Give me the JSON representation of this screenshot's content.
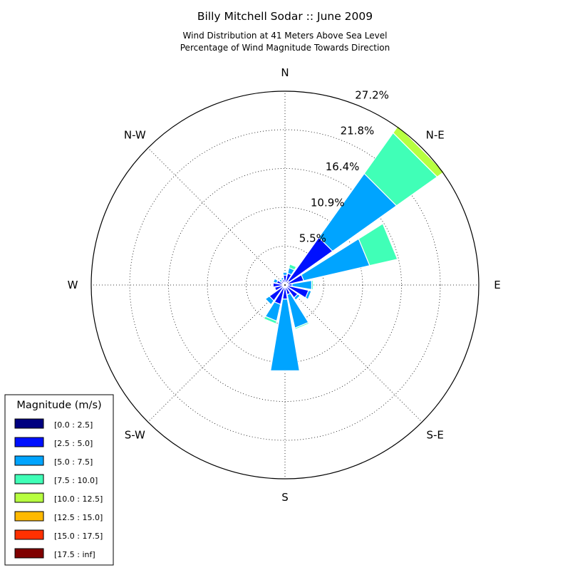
{
  "chart_data": {
    "type": "windrose",
    "title": "Billy Mitchell Sodar :: June 2009",
    "subtitle_lines": [
      "Wind Distribution at 41 Meters Above Sea Level",
      "Percentage of Wind Magnitude Towards Direction"
    ],
    "direction_labels": [
      "E",
      "N-E",
      "N",
      "N-W",
      "W",
      "S-W",
      "S",
      "S-E"
    ],
    "radial_tick_labels": [
      "5.5%",
      "10.9%",
      "16.4%",
      "21.8%",
      "27.2%"
    ],
    "radial_ticks": [
      5.45,
      10.9,
      16.35,
      21.8,
      27.2
    ],
    "rmax": 27.2,
    "grid": true,
    "legend": {
      "title": "Magnitude (m/s)",
      "placement": "bottom-left",
      "entries": [
        "[0.0 : 2.5]",
        "[2.5 : 5.0]",
        "[5.0 : 7.5]",
        "[7.5 : 10.0]",
        "[10.0 : 12.5]",
        "[12.5 : 15.0]",
        "[15.0 : 17.5]",
        "[17.5 : inf]"
      ],
      "colors": [
        "#000080",
        "#0010ff",
        "#00a4ff",
        "#40ffb7",
        "#b7ff40",
        "#ffb900",
        "#ff3000",
        "#800000"
      ]
    },
    "sectors_deg": [
      0,
      22.5,
      45,
      67.5,
      90,
      112.5,
      135,
      157.5,
      180,
      202.5,
      225,
      247.5,
      270,
      292.5,
      315,
      337.5
    ],
    "cumulative_percent": [
      [
        0.1,
        0.8,
        3.6,
        3.8,
        3.8,
        3.8,
        3.8,
        3.8
      ],
      [
        0.2,
        2.5,
        12.0,
        16.0,
        16.0,
        16.0,
        16.0,
        16.0
      ],
      [
        0.5,
        8.0,
        19.0,
        26.0,
        27.2,
        27.2,
        27.2,
        27.2
      ],
      [
        0.1,
        1.5,
        2.3,
        2.8,
        2.8,
        2.8,
        2.8,
        2.8
      ],
      [
        0.1,
        1.2,
        1.6,
        1.6,
        1.6,
        1.6,
        1.6,
        1.6
      ],
      [
        0.1,
        0.6,
        0.9,
        1.0,
        1.0,
        1.0,
        1.0,
        1.0
      ],
      [
        0.1,
        0.5,
        0.8,
        0.8,
        0.8,
        0.8,
        0.8,
        0.8
      ],
      [
        0.1,
        1.0,
        1.5,
        1.5,
        1.5,
        1.5,
        1.5,
        1.5
      ],
      [
        0.1,
        1.5,
        1.6,
        1.6,
        1.6,
        1.6,
        1.6,
        1.6
      ],
      [
        0.1,
        1.3,
        1.4,
        1.4,
        1.4,
        1.4,
        1.4,
        1.4
      ],
      [
        0.1,
        2.5,
        3.2,
        3.3,
        3.3,
        3.3,
        3.3,
        3.3
      ],
      [
        0.1,
        2.6,
        5.0,
        5.4,
        5.4,
        5.4,
        5.4,
        5.4
      ],
      [
        0.2,
        1.8,
        12.0,
        12.0,
        12.0,
        12.0,
        12.0,
        12.0
      ],
      [
        0.1,
        1.2,
        6.0,
        6.2,
        6.2,
        6.2,
        6.2,
        6.2
      ],
      [
        0.1,
        2.0,
        2.4,
        2.4,
        2.4,
        2.4,
        2.4,
        2.4
      ],
      [
        0.1,
        3.2,
        3.6,
        3.6,
        3.6,
        3.6,
        3.6,
        3.6
      ]
    ]
  }
}
